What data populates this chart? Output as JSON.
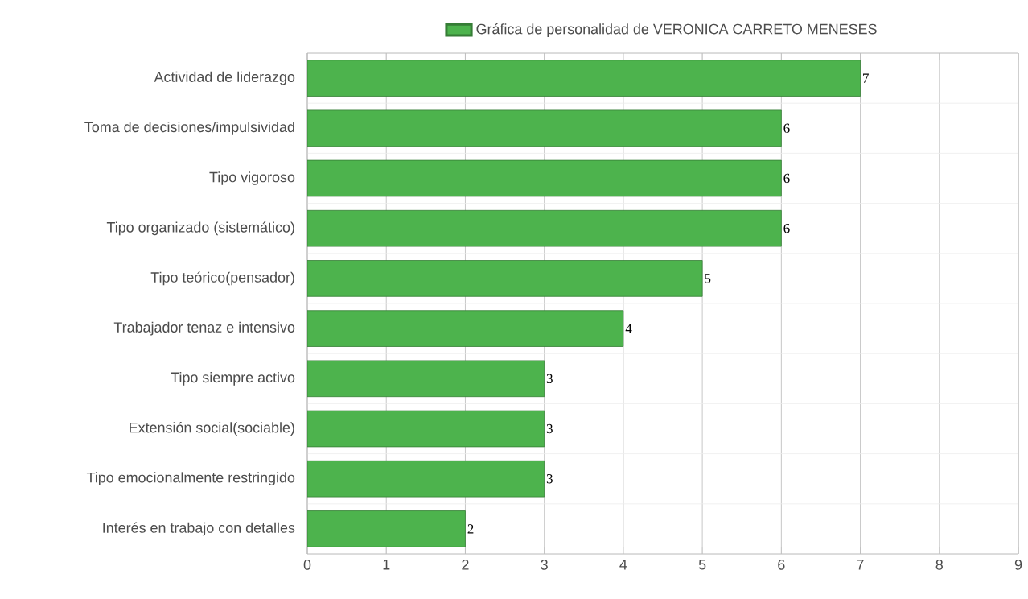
{
  "chart_data": {
    "type": "bar",
    "orientation": "horizontal",
    "categories": [
      "Actividad de liderazgo",
      "Toma de decisiones/impulsividad",
      "Tipo vigoroso",
      "Tipo organizado (sistemático)",
      "Tipo teórico(pensador)",
      "Trabajador tenaz e intensivo",
      "Tipo siempre activo",
      "Extensión social(sociable)",
      "Tipo emocionalmente restringido",
      "Interés en trabajo con detalles"
    ],
    "series": [
      {
        "name": "Gráfica de personalidad de VERONICA CARRETO MENESES",
        "color": "#4db34d",
        "values": [
          7,
          6,
          6,
          6,
          5,
          4,
          3,
          3,
          3,
          2
        ]
      }
    ],
    "xlim": [
      0,
      9
    ],
    "xticks": [
      0,
      1,
      2,
      3,
      4,
      5,
      6,
      7,
      8,
      9
    ],
    "grid": true,
    "legend": "top",
    "data_labels": true
  }
}
